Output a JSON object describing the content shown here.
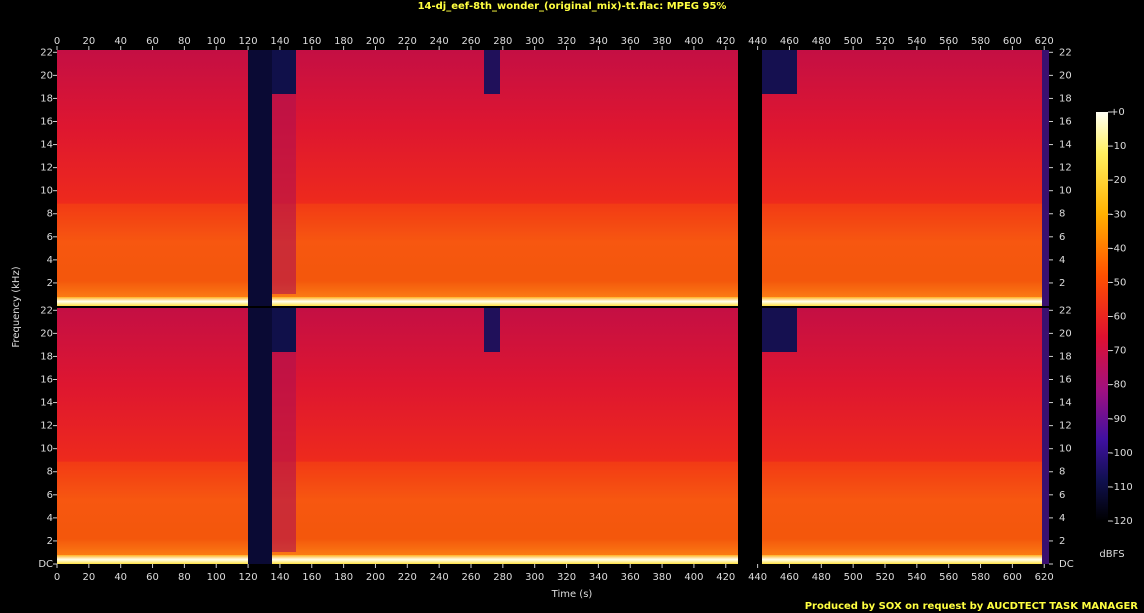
{
  "chart_data": {
    "type": "spectrogram",
    "title": "14-dj_eef-8th_wonder_(original_mix)-tt.flac: MPEG 95%",
    "x_label": "Time (s)",
    "y_label": "Frequency (kHz)",
    "xlim": [
      0,
      623
    ],
    "xticks": [
      0,
      20,
      40,
      60,
      80,
      100,
      120,
      140,
      160,
      180,
      200,
      220,
      240,
      260,
      280,
      300,
      320,
      340,
      360,
      380,
      400,
      420,
      440,
      460,
      480,
      500,
      520,
      540,
      560,
      580,
      600,
      620
    ],
    "panels": [
      {
        "ylim": [
          0,
          22.2
        ],
        "yticks": [
          2,
          4,
          6,
          8,
          10,
          12,
          14,
          16,
          18,
          20,
          22
        ]
      },
      {
        "ylim": [
          0,
          22.2
        ],
        "yticks": [
          {
            "value": 0,
            "label": "DC"
          },
          2,
          4,
          6,
          8,
          10,
          12,
          14,
          16,
          18,
          20,
          22
        ]
      }
    ],
    "colorbar": {
      "label": "dBFS",
      "lim": [
        -120,
        0
      ],
      "ticks": [
        {
          "value": 0,
          "label": "+0"
        },
        -10,
        -20,
        -30,
        -40,
        -50,
        -60,
        -70,
        -80,
        -90,
        -100,
        -110,
        -120
      ]
    },
    "credit": "Produced by SOX on request by AUCDTECT TASK MANAGER"
  }
}
